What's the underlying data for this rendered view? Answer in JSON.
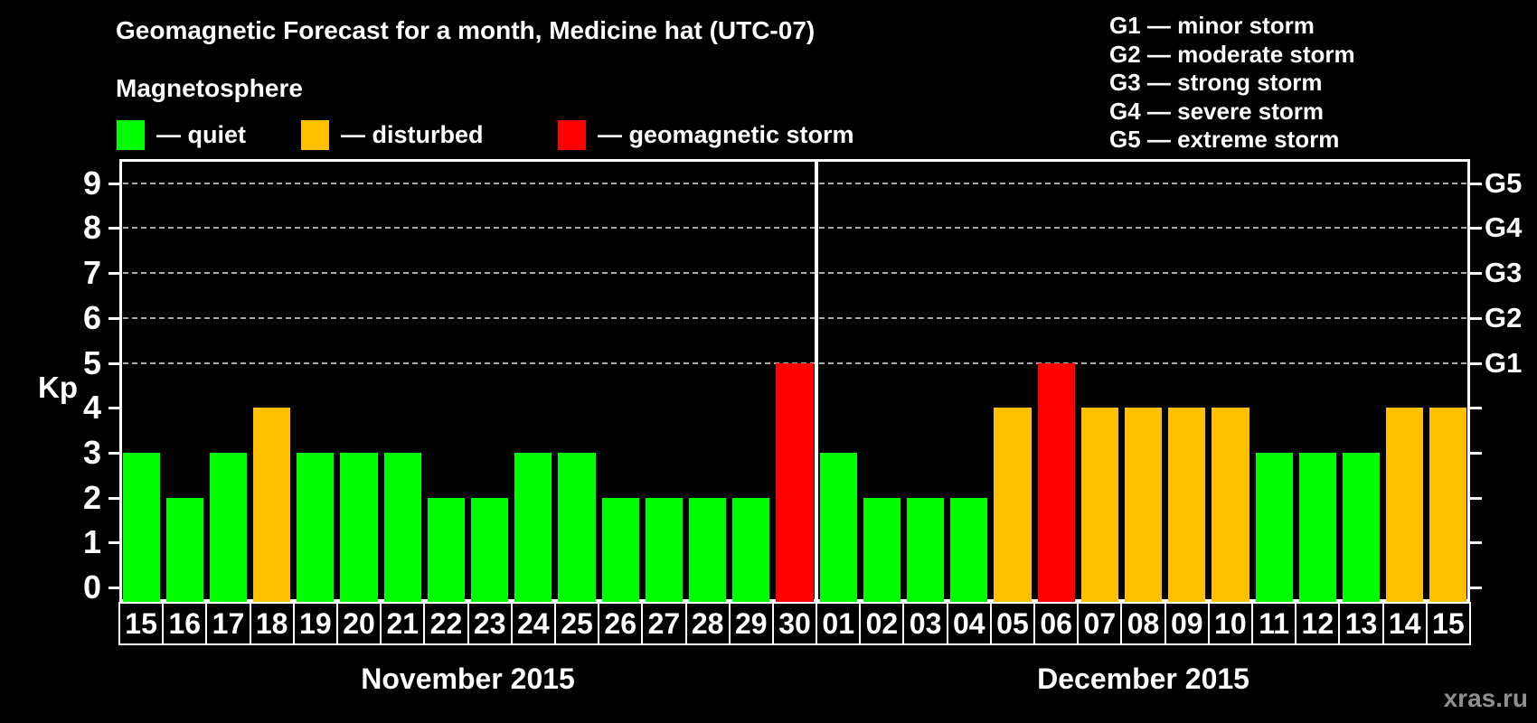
{
  "title": "Geomagnetic Forecast for a month, Medicine hat (UTC-07)",
  "subtitle": "Magnetosphere",
  "legend": {
    "items": [
      {
        "key": "quiet",
        "label": "— quiet",
        "color": "#00ff00"
      },
      {
        "key": "disturbed",
        "label": "— disturbed",
        "color": "#ffc000"
      },
      {
        "key": "storm",
        "label": "— geomagnetic storm",
        "color": "#ff0000"
      }
    ]
  },
  "g_scale_legend": [
    "G1 — minor storm",
    "G2 — moderate storm",
    "G3 — strong storm",
    "G4 — severe storm",
    "G5 — extreme storm"
  ],
  "watermark": "xras.ru",
  "chart_data": {
    "type": "bar",
    "title": "Geomagnetic Forecast for a month, Medicine hat (UTC-07)",
    "ylabel": "Kp",
    "ylim": [
      0,
      9
    ],
    "yticks": [
      0,
      1,
      2,
      3,
      4,
      5,
      6,
      7,
      8,
      9
    ],
    "gridlines_at": [
      5,
      6,
      7,
      8,
      9
    ],
    "grid": "dashed",
    "legend_position": "top",
    "right_axis_labels": [
      {
        "label": "G1",
        "value": 5
      },
      {
        "label": "G2",
        "value": 6
      },
      {
        "label": "G3",
        "value": 7
      },
      {
        "label": "G4",
        "value": 8
      },
      {
        "label": "G5",
        "value": 9
      }
    ],
    "colors": {
      "quiet": "#00ff00",
      "disturbed": "#ffc000",
      "storm": "#ff0000"
    },
    "months": [
      {
        "label": "November 2015",
        "count": 16
      },
      {
        "label": "December 2015",
        "count": 15
      }
    ],
    "bars": [
      {
        "day": "15",
        "month": "November 2015",
        "value": 3,
        "status": "quiet"
      },
      {
        "day": "16",
        "month": "November 2015",
        "value": 2,
        "status": "quiet"
      },
      {
        "day": "17",
        "month": "November 2015",
        "value": 3,
        "status": "quiet"
      },
      {
        "day": "18",
        "month": "November 2015",
        "value": 4,
        "status": "disturbed"
      },
      {
        "day": "19",
        "month": "November 2015",
        "value": 3,
        "status": "quiet"
      },
      {
        "day": "20",
        "month": "November 2015",
        "value": 3,
        "status": "quiet"
      },
      {
        "day": "21",
        "month": "November 2015",
        "value": 3,
        "status": "quiet"
      },
      {
        "day": "22",
        "month": "November 2015",
        "value": 2,
        "status": "quiet"
      },
      {
        "day": "23",
        "month": "November 2015",
        "value": 2,
        "status": "quiet"
      },
      {
        "day": "24",
        "month": "November 2015",
        "value": 3,
        "status": "quiet"
      },
      {
        "day": "25",
        "month": "November 2015",
        "value": 3,
        "status": "quiet"
      },
      {
        "day": "26",
        "month": "November 2015",
        "value": 2,
        "status": "quiet"
      },
      {
        "day": "27",
        "month": "November 2015",
        "value": 2,
        "status": "quiet"
      },
      {
        "day": "28",
        "month": "November 2015",
        "value": 2,
        "status": "quiet"
      },
      {
        "day": "29",
        "month": "November 2015",
        "value": 2,
        "status": "quiet"
      },
      {
        "day": "30",
        "month": "November 2015",
        "value": 5,
        "status": "storm"
      },
      {
        "day": "01",
        "month": "December 2015",
        "value": 3,
        "status": "quiet"
      },
      {
        "day": "02",
        "month": "December 2015",
        "value": 2,
        "status": "quiet"
      },
      {
        "day": "03",
        "month": "December 2015",
        "value": 2,
        "status": "quiet"
      },
      {
        "day": "04",
        "month": "December 2015",
        "value": 2,
        "status": "quiet"
      },
      {
        "day": "05",
        "month": "December 2015",
        "value": 4,
        "status": "disturbed"
      },
      {
        "day": "06",
        "month": "December 2015",
        "value": 5,
        "status": "storm"
      },
      {
        "day": "07",
        "month": "December 2015",
        "value": 4,
        "status": "disturbed"
      },
      {
        "day": "08",
        "month": "December 2015",
        "value": 4,
        "status": "disturbed"
      },
      {
        "day": "09",
        "month": "December 2015",
        "value": 4,
        "status": "disturbed"
      },
      {
        "day": "10",
        "month": "December 2015",
        "value": 4,
        "status": "disturbed"
      },
      {
        "day": "11",
        "month": "December 2015",
        "value": 3,
        "status": "quiet"
      },
      {
        "day": "12",
        "month": "December 2015",
        "value": 3,
        "status": "quiet"
      },
      {
        "day": "13",
        "month": "December 2015",
        "value": 3,
        "status": "quiet"
      },
      {
        "day": "14",
        "month": "December 2015",
        "value": 4,
        "status": "disturbed"
      },
      {
        "day": "15",
        "month": "December 2015",
        "value": 4,
        "status": "disturbed"
      }
    ]
  }
}
